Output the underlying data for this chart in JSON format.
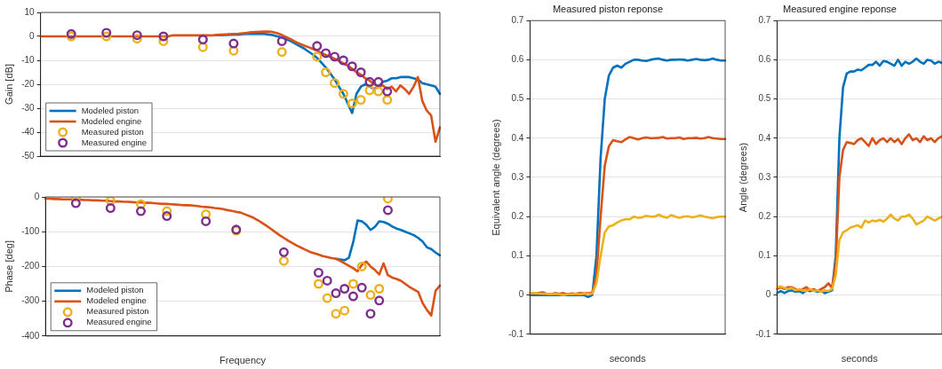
{
  "chart_data": [
    {
      "type": "line",
      "ylabel": "Gain [dB]",
      "categories": [
        null,
        null,
        null,
        null,
        null,
        null,
        null,
        null,
        null,
        null,
        null,
        null,
        null,
        null,
        null,
        null,
        null,
        null,
        null,
        null,
        null,
        null,
        null,
        null,
        null,
        null,
        null,
        null,
        null,
        null,
        null,
        null,
        null,
        null,
        null,
        null,
        null,
        null,
        null,
        null,
        null,
        null,
        null,
        null,
        null,
        null,
        null,
        null,
        null,
        null,
        null,
        null,
        null,
        null,
        null,
        null,
        null,
        null,
        null,
        null,
        null,
        null,
        null,
        null,
        null,
        null,
        null,
        null,
        null,
        null,
        null,
        null,
        null,
        null,
        null,
        null,
        null,
        null,
        null,
        null,
        null,
        null,
        null,
        null,
        null,
        null,
        null,
        null,
        null,
        null,
        null,
        null
      ],
      "ylim": [
        -50,
        10
      ],
      "yticks": [
        10,
        0,
        -10,
        -20,
        -30,
        -40,
        -50
      ],
      "grid": "y",
      "legend": "bottom left",
      "tick_labels": "y",
      "series": [
        {
          "name": "Modeled piston",
          "marker": "none",
          "color": "#0072bd",
          "values": [
            null,
            null,
            null,
            null,
            null,
            null,
            null,
            null,
            null,
            null,
            null,
            null,
            null,
            null,
            null,
            null,
            null,
            null,
            null,
            null,
            null,
            null,
            null,
            null,
            null,
            null,
            null,
            null,
            null,
            null,
            null,
            null,
            null,
            null,
            null,
            null,
            null,
            null,
            null,
            null,
            0.5,
            0.5,
            0.6,
            0.7,
            0.8,
            0.8,
            0.9,
            1,
            1,
            1,
            1,
            1,
            0.8,
            0.5,
            0,
            -0.5,
            -1.2,
            -2,
            -3,
            -4,
            -5,
            -6.3,
            -7.5,
            -9,
            -11,
            -13,
            -15.5,
            -18,
            -21,
            -24,
            -28,
            -32,
            -24,
            -21,
            -20,
            -21,
            -22,
            -21,
            -19,
            -18.5,
            -17.5,
            -17.5,
            -17,
            -17,
            -17,
            -17.5,
            -18,
            -19.5,
            -20,
            -20.5,
            -21,
            -24
          ]
        },
        {
          "name": "Modeled engine",
          "marker": "none",
          "color": "#d95319",
          "values": [
            0,
            0,
            0,
            0,
            0,
            0,
            0,
            0,
            0,
            0,
            0,
            0,
            0,
            0,
            0,
            0,
            0,
            0,
            0,
            0,
            0,
            0,
            0,
            0,
            0,
            0,
            0,
            0,
            0,
            0,
            0.4,
            0.4,
            0.4,
            0.4,
            0.4,
            0.4,
            0.4,
            0.4,
            0.4,
            0.4,
            0.6,
            0.7,
            0.8,
            0.9,
            1,
            1.1,
            1.3,
            1.5,
            1.7,
            1.8,
            1.9,
            2,
            2,
            1.8,
            1.3,
            0.6,
            -0.3,
            -1.2,
            -2.2,
            -3,
            -3.8,
            -4.5,
            -5.2,
            -6,
            -7,
            -7.8,
            -8.5,
            -9.3,
            -10.3,
            -11.3,
            -12.3,
            -13.5,
            -15,
            -16,
            -17.5,
            -18.5,
            -20,
            -21,
            -20.5,
            -22,
            -21,
            -23,
            -20.5,
            -22,
            -24,
            -21,
            -17,
            -27,
            -31,
            -33,
            -44,
            -38
          ]
        },
        {
          "name": "Measured piston",
          "type": "scatter",
          "marker": "circle",
          "color": "#edb120",
          "values": [
            null,
            null,
            null,
            null,
            null,
            null,
            null,
            0,
            null,
            null,
            null,
            null,
            null,
            null,
            null,
            0,
            null,
            null,
            null,
            null,
            null,
            null,
            -1,
            null,
            null,
            null,
            null,
            null,
            -2,
            null,
            null,
            null,
            null,
            null,
            null,
            null,
            null,
            -4.5,
            null,
            null,
            null,
            null,
            null,
            null,
            -6,
            null,
            null,
            null,
            null,
            null,
            null,
            null,
            null,
            null,
            null,
            -6.5,
            null,
            null,
            null,
            null,
            null,
            null,
            null,
            -8.5,
            null,
            -15,
            null,
            -19.5,
            null,
            -24,
            null,
            -28,
            null,
            -26.5,
            null,
            -22.5,
            null,
            -23,
            null,
            -26.5,
            null,
            null,
            null,
            null,
            null,
            null,
            null,
            null,
            null,
            null,
            null,
            null
          ]
        },
        {
          "name": "Measured engine",
          "type": "scatter",
          "marker": "circle",
          "color": "#7e2f8e",
          "values": [
            null,
            null,
            null,
            null,
            null,
            null,
            null,
            1,
            null,
            null,
            null,
            null,
            null,
            null,
            null,
            1.5,
            null,
            null,
            null,
            null,
            null,
            null,
            0.5,
            null,
            null,
            null,
            null,
            null,
            0,
            null,
            null,
            null,
            null,
            null,
            null,
            null,
            null,
            -1.3,
            null,
            null,
            null,
            null,
            null,
            null,
            -3,
            null,
            null,
            null,
            null,
            null,
            null,
            null,
            null,
            null,
            null,
            -2,
            null,
            null,
            null,
            null,
            null,
            null,
            null,
            -4,
            null,
            -7,
            null,
            -8.5,
            null,
            -10,
            null,
            -12.5,
            null,
            -15,
            null,
            -19,
            null,
            -19,
            null,
            -23,
            null,
            null,
            null,
            null,
            null,
            null,
            null,
            null,
            null,
            null,
            null,
            null
          ]
        }
      ]
    },
    {
      "type": "line",
      "xlabel": "Frequency",
      "ylabel": "Phase [deg]",
      "categories": [
        null,
        null,
        null,
        null,
        null,
        null,
        null,
        null,
        null,
        null,
        null,
        null,
        null,
        null,
        null,
        null,
        null,
        null,
        null,
        null,
        null,
        null,
        null,
        null,
        null,
        null,
        null,
        null,
        null,
        null,
        null,
        null,
        null,
        null,
        null,
        null,
        null,
        null,
        null,
        null,
        null,
        null,
        null,
        null,
        null,
        null,
        null,
        null,
        null,
        null,
        null,
        null,
        null,
        null,
        null,
        null,
        null,
        null,
        null,
        null,
        null,
        null,
        null,
        null,
        null,
        null,
        null,
        null,
        null,
        null,
        null,
        null,
        null,
        null,
        null,
        null,
        null,
        null,
        null,
        null,
        null,
        null,
        null,
        null,
        null,
        null,
        null,
        null,
        null,
        null,
        null,
        null
      ],
      "ylim": [
        -400,
        0
      ],
      "yticks": [
        0,
        -100,
        -200,
        -300,
        -400
      ],
      "grid": "y",
      "legend": "bottom left",
      "tick_labels": "y",
      "series": [
        {
          "name": "Modeled piston",
          "marker": "none",
          "color": "#0072bd",
          "values": [
            null,
            null,
            null,
            null,
            null,
            null,
            null,
            null,
            null,
            null,
            null,
            null,
            null,
            null,
            null,
            null,
            null,
            null,
            null,
            null,
            null,
            null,
            null,
            null,
            null,
            null,
            null,
            null,
            null,
            null,
            null,
            null,
            null,
            null,
            null,
            null,
            null,
            null,
            null,
            null,
            null,
            null,
            null,
            null,
            null,
            null,
            null,
            null,
            null,
            null,
            null,
            null,
            null,
            null,
            null,
            null,
            null,
            null,
            null,
            null,
            null,
            null,
            null,
            null,
            null,
            null,
            null,
            -178,
            -180,
            -182,
            -175,
            -130,
            -68,
            -70,
            -80,
            -95,
            -86,
            -70,
            -72,
            -77,
            -85,
            -91,
            -95,
            -100,
            -105,
            -110,
            -118,
            -128,
            -145,
            -150,
            -160,
            -168
          ]
        },
        {
          "name": "Modeled engine",
          "marker": "none",
          "color": "#d95319",
          "values": [
            -5,
            -5,
            -6,
            -6,
            -7,
            -7,
            -7,
            -8,
            -8,
            -9,
            -9,
            -10,
            -10,
            -11,
            -11,
            -12,
            -13,
            -13,
            -14,
            -14,
            -15,
            -16,
            -16,
            -17,
            -17,
            -18,
            -19,
            -20,
            -20,
            -21,
            -22,
            -23,
            -24,
            -24,
            -25,
            -26,
            -28,
            -29,
            -30,
            -32,
            -33,
            -35,
            -38,
            -40,
            -43,
            -45,
            -50,
            -55,
            -60,
            -67,
            -75,
            -83,
            -92,
            -101,
            -110,
            -118,
            -126,
            -133,
            -140,
            -146,
            -152,
            -158,
            -162,
            -166,
            -170,
            -173,
            -176,
            -178,
            -184,
            -191,
            -198,
            -205,
            -214,
            -195,
            -186,
            -200,
            -210,
            -223,
            -191,
            -225,
            -232,
            -236,
            -241,
            -250,
            -259,
            -266,
            -273,
            -305,
            -325,
            -341,
            -270,
            -255
          ]
        },
        {
          "name": "Measured piston",
          "type": "scatter",
          "marker": "circle",
          "color": "#edb120",
          "values": [
            null,
            null,
            null,
            null,
            null,
            null,
            null,
            0,
            null,
            null,
            null,
            null,
            null,
            null,
            null,
            -11,
            null,
            null,
            null,
            null,
            null,
            null,
            -21,
            null,
            null,
            null,
            null,
            null,
            -41,
            null,
            null,
            null,
            null,
            null,
            null,
            null,
            null,
            -50,
            null,
            null,
            null,
            null,
            null,
            null,
            -97,
            null,
            null,
            null,
            null,
            null,
            null,
            null,
            null,
            null,
            null,
            -184,
            null,
            null,
            null,
            null,
            null,
            null,
            null,
            -250,
            null,
            -291,
            null,
            -336,
            null,
            -327,
            null,
            -250,
            null,
            -200,
            null,
            -282,
            null,
            -264,
            null,
            -5,
            null,
            null,
            null,
            null,
            null,
            null,
            null,
            null,
            null,
            null,
            null,
            null
          ]
        },
        {
          "name": "Measured engine",
          "type": "scatter",
          "marker": "circle",
          "color": "#7e2f8e",
          "values": [
            null,
            null,
            null,
            null,
            null,
            null,
            null,
            -18,
            null,
            null,
            null,
            null,
            null,
            null,
            null,
            -32,
            null,
            null,
            null,
            null,
            null,
            null,
            -41,
            null,
            null,
            null,
            null,
            null,
            -55,
            null,
            null,
            null,
            null,
            null,
            null,
            null,
            null,
            -70,
            null,
            null,
            null,
            null,
            null,
            null,
            -94,
            null,
            null,
            null,
            null,
            null,
            null,
            null,
            null,
            null,
            null,
            -159,
            null,
            null,
            null,
            null,
            null,
            null,
            null,
            -218,
            null,
            -241,
            null,
            -277,
            null,
            -264,
            null,
            -286,
            null,
            -261,
            null,
            -336,
            null,
            -298,
            null,
            -38,
            null,
            null,
            null,
            null,
            null,
            null,
            null,
            null,
            null,
            null,
            null,
            null
          ]
        }
      ]
    },
    {
      "type": "line",
      "title": "Measured piston reponse",
      "xlabel": "seconds",
      "ylabel": "Equivalent angle (degrees)",
      "categories": [
        null,
        null,
        null,
        null,
        null,
        null,
        null,
        null,
        null,
        null,
        null,
        null,
        null,
        null,
        null,
        null,
        null,
        null,
        null,
        null,
        null,
        null,
        null,
        null,
        null,
        null,
        null,
        null,
        null,
        null,
        null,
        null,
        null,
        null,
        null,
        null,
        null,
        null,
        null,
        null,
        null,
        null,
        null,
        null,
        null,
        null,
        null,
        null
      ],
      "ylim": [
        -0.1,
        0.7
      ],
      "yticks": [
        -0.1,
        0,
        0.1,
        0.2,
        0.3,
        0.4,
        0.5,
        0.6,
        0.7
      ],
      "grid": "y",
      "tick_labels": "y",
      "series": [
        {
          "color": "#0072bd",
          "values": [
            0,
            0,
            0,
            0,
            0,
            0,
            0,
            0,
            0,
            0,
            0,
            0,
            0,
            0,
            -0.005,
            0,
            0.1,
            0.35,
            0.5,
            0.56,
            0.58,
            0.585,
            0.58,
            0.59,
            0.595,
            0.6,
            0.6,
            0.598,
            0.597,
            0.6,
            0.602,
            0.603,
            0.6,
            0.598,
            0.6,
            0.6,
            0.601,
            0.6,
            0.598,
            0.6,
            0.602,
            0.6,
            0.599,
            0.6,
            0.603,
            0.6,
            0.598,
            0.598
          ]
        },
        {
          "color": "#d95319",
          "values": [
            0.005,
            0.003,
            0.005,
            0.007,
            0.003,
            0.002,
            0.005,
            0.003,
            0.005,
            0.002,
            0.004,
            0.003,
            0.005,
            0.004,
            0.005,
            0.005,
            0.05,
            0.2,
            0.33,
            0.38,
            0.395,
            0.392,
            0.39,
            0.397,
            0.403,
            0.4,
            0.397,
            0.4,
            0.402,
            0.4,
            0.4,
            0.401,
            0.403,
            0.399,
            0.4,
            0.4,
            0.402,
            0.398,
            0.4,
            0.4,
            0.401,
            0.399,
            0.4,
            0.403,
            0.4,
            0.399,
            0.398,
            0.398
          ]
        },
        {
          "color": "#edb120",
          "values": [
            0.005,
            0.005,
            0.004,
            0.003,
            0.003,
            0.002,
            0.003,
            0.002,
            0,
            0.002,
            0.002,
            0.003,
            0.002,
            0.003,
            0.004,
            0.003,
            0.03,
            0.1,
            0.16,
            0.175,
            0.178,
            0.185,
            0.19,
            0.193,
            0.193,
            0.2,
            0.197,
            0.198,
            0.202,
            0.2,
            0.2,
            0.205,
            0.2,
            0.197,
            0.204,
            0.2,
            0.197,
            0.2,
            0.201,
            0.198,
            0.2,
            0.203,
            0.2,
            0.198,
            0.196,
            0.199,
            0.2,
            0.2
          ]
        }
      ]
    },
    {
      "type": "line",
      "title": "Measured engine reponse",
      "xlabel": "seconds",
      "ylabel": "Angle (degrees)",
      "categories": [
        null,
        null,
        null,
        null,
        null,
        null,
        null,
        null,
        null,
        null,
        null,
        null,
        null,
        null,
        null,
        null,
        null,
        null,
        null,
        null,
        null,
        null,
        null,
        null,
        null,
        null,
        null,
        null,
        null,
        null,
        null,
        null,
        null,
        null,
        null,
        null,
        null,
        null,
        null,
        null,
        null,
        null,
        null,
        null,
        null,
        null
      ],
      "ylim": [
        -0.1,
        0.7
      ],
      "yticks": [
        -0.1,
        0,
        0.1,
        0.2,
        0.3,
        0.4,
        0.5,
        0.6,
        0.7
      ],
      "grid": "y",
      "tick_labels": "y",
      "series": [
        {
          "color": "#0072bd",
          "values": [
            0.005,
            0.01,
            0.005,
            0.01,
            0.012,
            0.008,
            0.01,
            0.005,
            0.012,
            0.01,
            0.012,
            0.008,
            0.01,
            0.005,
            0.008,
            0.012,
            0.1,
            0.4,
            0.53,
            0.565,
            0.57,
            0.57,
            0.575,
            0.573,
            0.58,
            0.587,
            0.587,
            0.595,
            0.585,
            0.597,
            0.595,
            0.59,
            0.585,
            0.6,
            0.585,
            0.595,
            0.59,
            0.595,
            0.603,
            0.595,
            0.59,
            0.6,
            0.598,
            0.59,
            0.595,
            0.592
          ]
        },
        {
          "color": "#d95319",
          "values": [
            0.015,
            0.02,
            0.015,
            0.02,
            0.02,
            0.015,
            0.01,
            0.015,
            0.02,
            0.012,
            0.015,
            0.01,
            0.015,
            0.02,
            0.03,
            0.018,
            0.08,
            0.3,
            0.37,
            0.39,
            0.388,
            0.385,
            0.395,
            0.4,
            0.39,
            0.38,
            0.4,
            0.385,
            0.395,
            0.4,
            0.39,
            0.4,
            0.39,
            0.398,
            0.385,
            0.4,
            0.41,
            0.395,
            0.4,
            0.39,
            0.405,
            0.395,
            0.4,
            0.39,
            0.4,
            0.405
          ]
        },
        {
          "color": "#edb120",
          "values": [
            0.02,
            0.022,
            0.018,
            0.015,
            0.018,
            0.012,
            0.015,
            0.012,
            0.01,
            0.015,
            0.01,
            0.012,
            0.008,
            0.012,
            0.01,
            0.015,
            0.05,
            0.14,
            0.16,
            0.165,
            0.172,
            0.175,
            0.178,
            0.172,
            0.19,
            0.185,
            0.19,
            0.188,
            0.192,
            0.187,
            0.195,
            0.205,
            0.195,
            0.19,
            0.2,
            0.2,
            0.205,
            0.195,
            0.18,
            0.185,
            0.19,
            0.2,
            0.195,
            0.19,
            0.195,
            0.2
          ]
        }
      ]
    }
  ]
}
